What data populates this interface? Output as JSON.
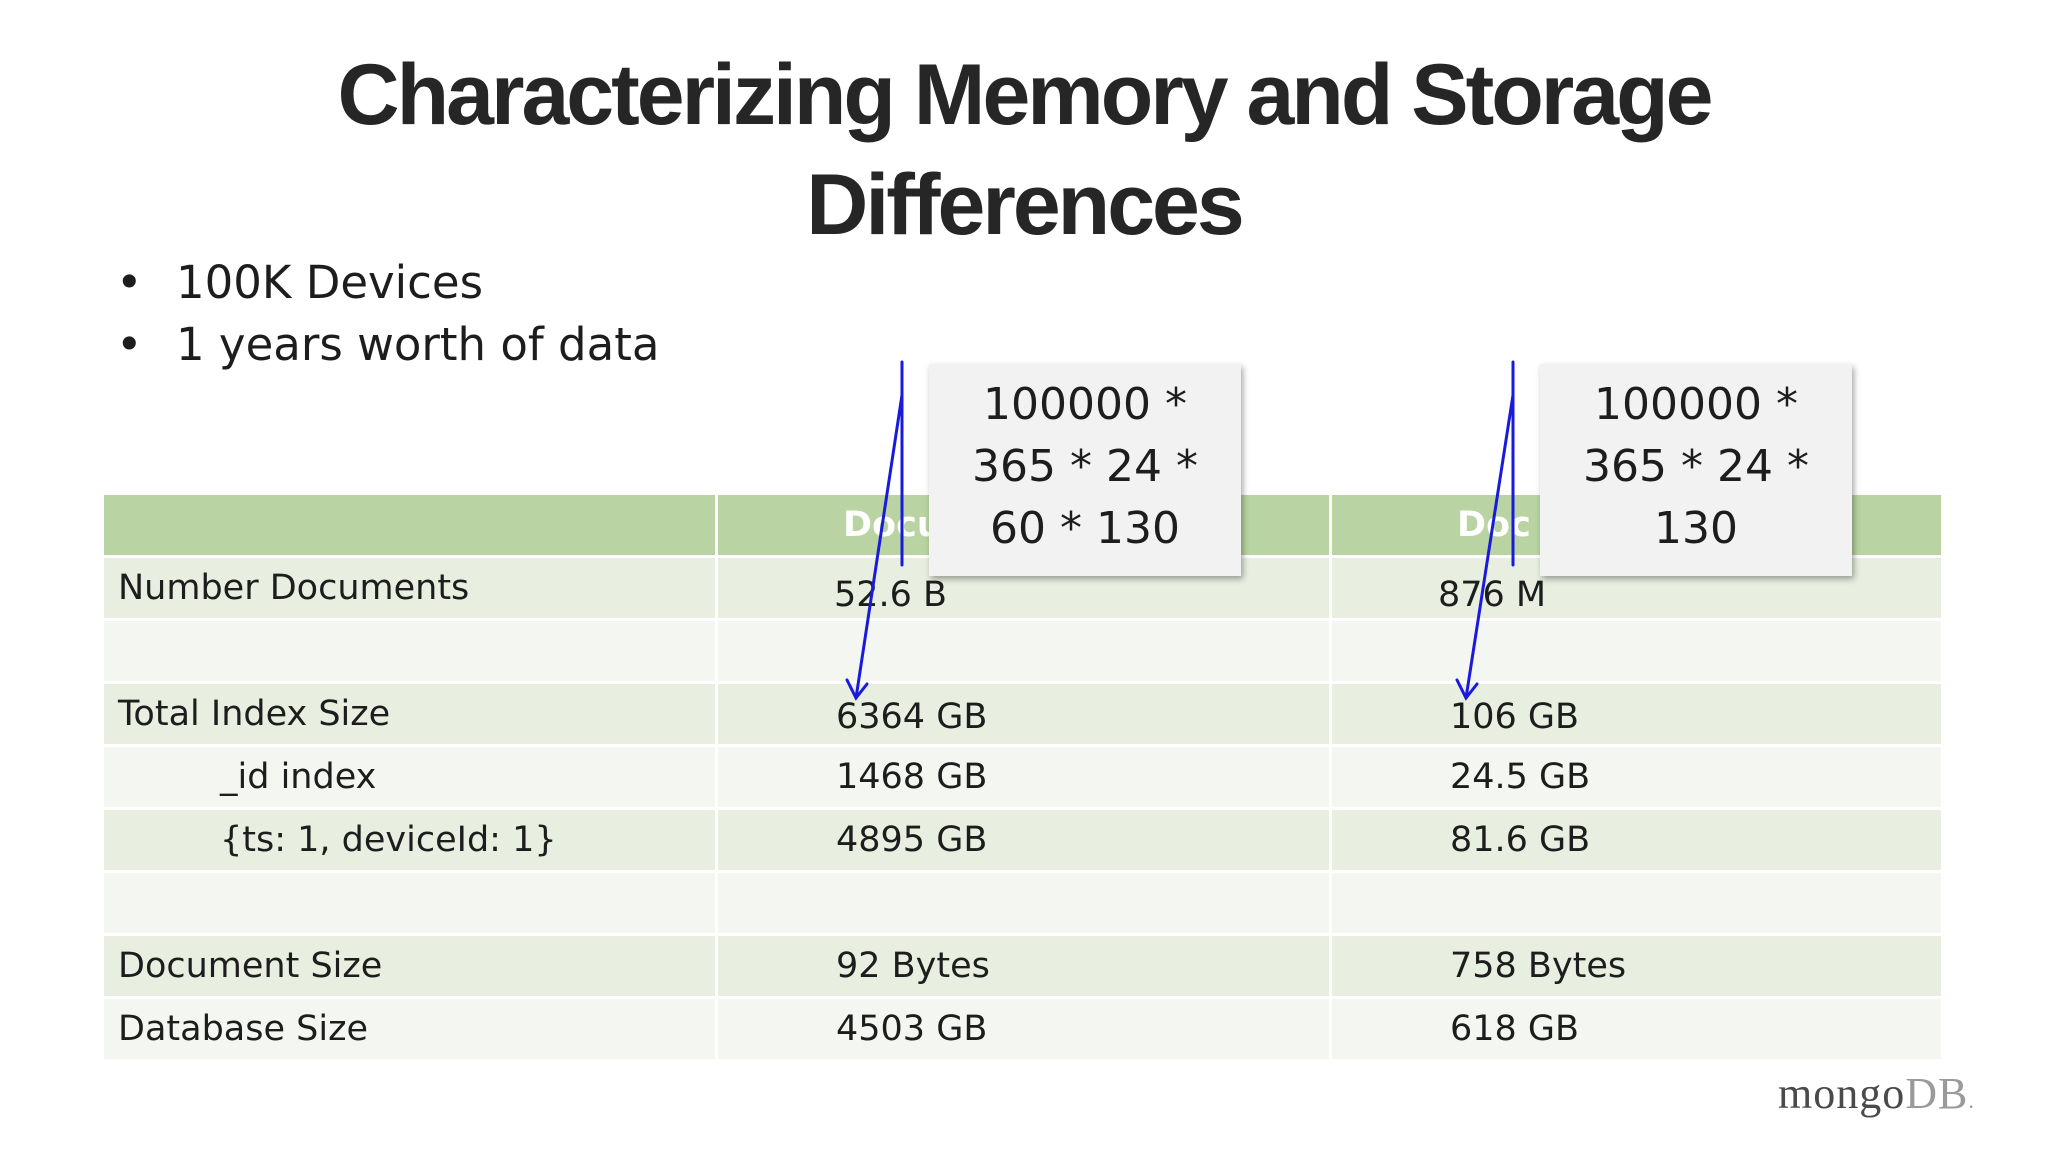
{
  "slide": {
    "title_line1": "Characterizing Memory and Storage",
    "title_line2": "Differences"
  },
  "bullets": [
    "100K Devices",
    "1 years worth of data"
  ],
  "table": {
    "header": [
      "",
      "Docu",
      "Doc"
    ],
    "rows": [
      {
        "label": "Number Documents",
        "col1": "52.6 B",
        "col2": "876 M"
      },
      {
        "label": "",
        "col1": "",
        "col2": ""
      },
      {
        "label": "Total Index Size",
        "col1": "6364 GB",
        "col2": "106 GB"
      },
      {
        "label": "_id index",
        "col1": "1468 GB",
        "col2": "24.5 GB"
      },
      {
        "label": "{ts: 1, deviceId: 1}",
        "col1": "4895 GB",
        "col2": "81.6 GB"
      },
      {
        "label": "",
        "col1": "",
        "col2": ""
      },
      {
        "label": "Document Size",
        "col1": "92 Bytes",
        "col2": "758 Bytes"
      },
      {
        "label": "Database Size",
        "col1": "4503 GB",
        "col2": "618 GB"
      }
    ]
  },
  "callouts": {
    "left": [
      "100000 *",
      "365 * 24 *",
      "60 * 130"
    ],
    "right": [
      "100000 *",
      "365 * 24 *",
      "130"
    ]
  },
  "logo": {
    "mongo": "mongo",
    "db": "DB",
    "mark": "."
  },
  "colors": {
    "header_green": "#b9d4a2",
    "row_odd": "#e8efe1",
    "row_even": "#f4f7f1",
    "annotation_blue": "#1a1adb"
  }
}
